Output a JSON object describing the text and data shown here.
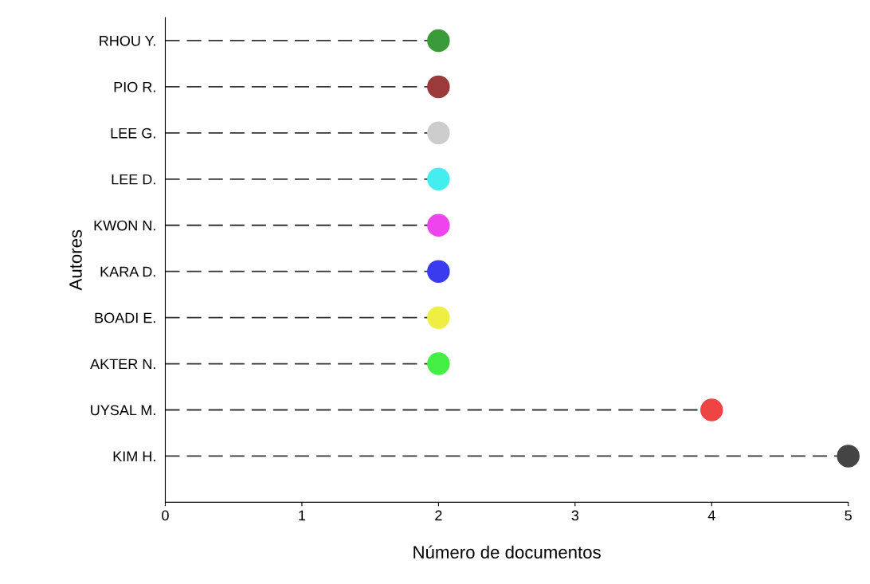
{
  "chart_data": {
    "type": "lollipop",
    "orientation": "horizontal",
    "xlabel": "Número de documentos",
    "ylabel": "Autores",
    "categories": [
      "RHOU Y.",
      "PIO R.",
      "LEE G.",
      "LEE D.",
      "KWON N.",
      "KARA D.",
      "BOADI E.",
      "AKTER N.",
      "UYSAL M.",
      "KIM H."
    ],
    "values": [
      2,
      2,
      2,
      2,
      2,
      2,
      2,
      2,
      4,
      5
    ],
    "colors": [
      "#3a9a3a",
      "#9a3a3a",
      "#cccccc",
      "#44eeee",
      "#ee44ee",
      "#3a3aee",
      "#eeee44",
      "#44ee44",
      "#ee4444",
      "#444444"
    ],
    "xlim": [
      0,
      5
    ],
    "xticks": [
      0,
      1,
      2,
      3,
      4,
      5
    ],
    "line_style": "dashed",
    "marker": "circle",
    "grid": false,
    "legend": false
  }
}
